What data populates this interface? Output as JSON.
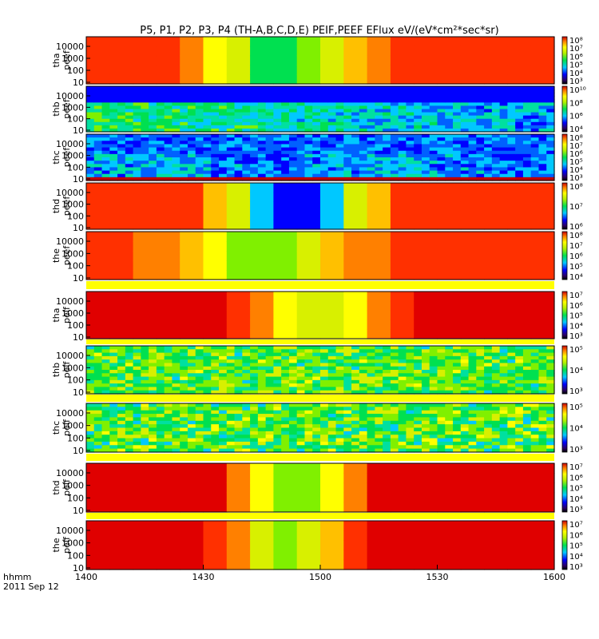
{
  "chart_data": {
    "type": "heatmap",
    "title": "P5, P1, P2, P3, P4 (TH-A,B,C,D,E) PEIF,PEEF EFlux eV/(eV*cm²*sec*sr)",
    "x_axis": {
      "ticks": [
        "1400",
        "1430",
        "1500",
        "1530",
        "1600"
      ],
      "range": [
        "14:00",
        "16:00"
      ],
      "corner_label": "hhmm",
      "date_label": "2011 Sep 12"
    },
    "y_axis": {
      "scale": "log",
      "ticks": [
        "10",
        "100",
        "1000",
        "10000"
      ],
      "unit": "eV"
    },
    "panels": [
      {
        "label": "tha\npeef",
        "cbar_ticks": [
          "10⁸",
          "10⁷",
          "10⁶",
          "10⁵",
          "10⁴",
          "10³"
        ]
      },
      {
        "label": "thb\npeef",
        "cbar_ticks": [
          "10¹⁰",
          "10⁸",
          "10⁶",
          "10⁴"
        ]
      },
      {
        "label": "thc\npeef",
        "cbar_ticks": [
          "10⁸",
          "10⁷",
          "10⁶",
          "10⁵",
          "10⁴",
          "10³"
        ]
      },
      {
        "label": "thd\npeef",
        "cbar_ticks": [
          "10⁸",
          "10⁷",
          "10⁶"
        ]
      },
      {
        "label": "the\npeef",
        "cbar_ticks": [
          "10⁸",
          "10⁷",
          "10⁶",
          "10⁵",
          "10⁴"
        ]
      },
      {
        "label": "tha\npeif",
        "cbar_ticks": [
          "10⁷",
          "10⁶",
          "10⁵",
          "10⁴",
          "10³"
        ]
      },
      {
        "label": "thb\npeif",
        "cbar_ticks": [
          "10⁵",
          "10⁴",
          "10³"
        ]
      },
      {
        "label": "thc\npeif",
        "cbar_ticks": [
          "10⁵",
          "10⁴",
          "10³"
        ]
      },
      {
        "label": "thd\npeif",
        "cbar_ticks": [
          "10⁷",
          "10⁶",
          "10⁵",
          "10⁴",
          "10³"
        ]
      },
      {
        "label": "the\npeif",
        "cbar_ticks": [
          "10⁷",
          "10⁶",
          "10⁵",
          "10⁴",
          "10³"
        ]
      }
    ]
  }
}
